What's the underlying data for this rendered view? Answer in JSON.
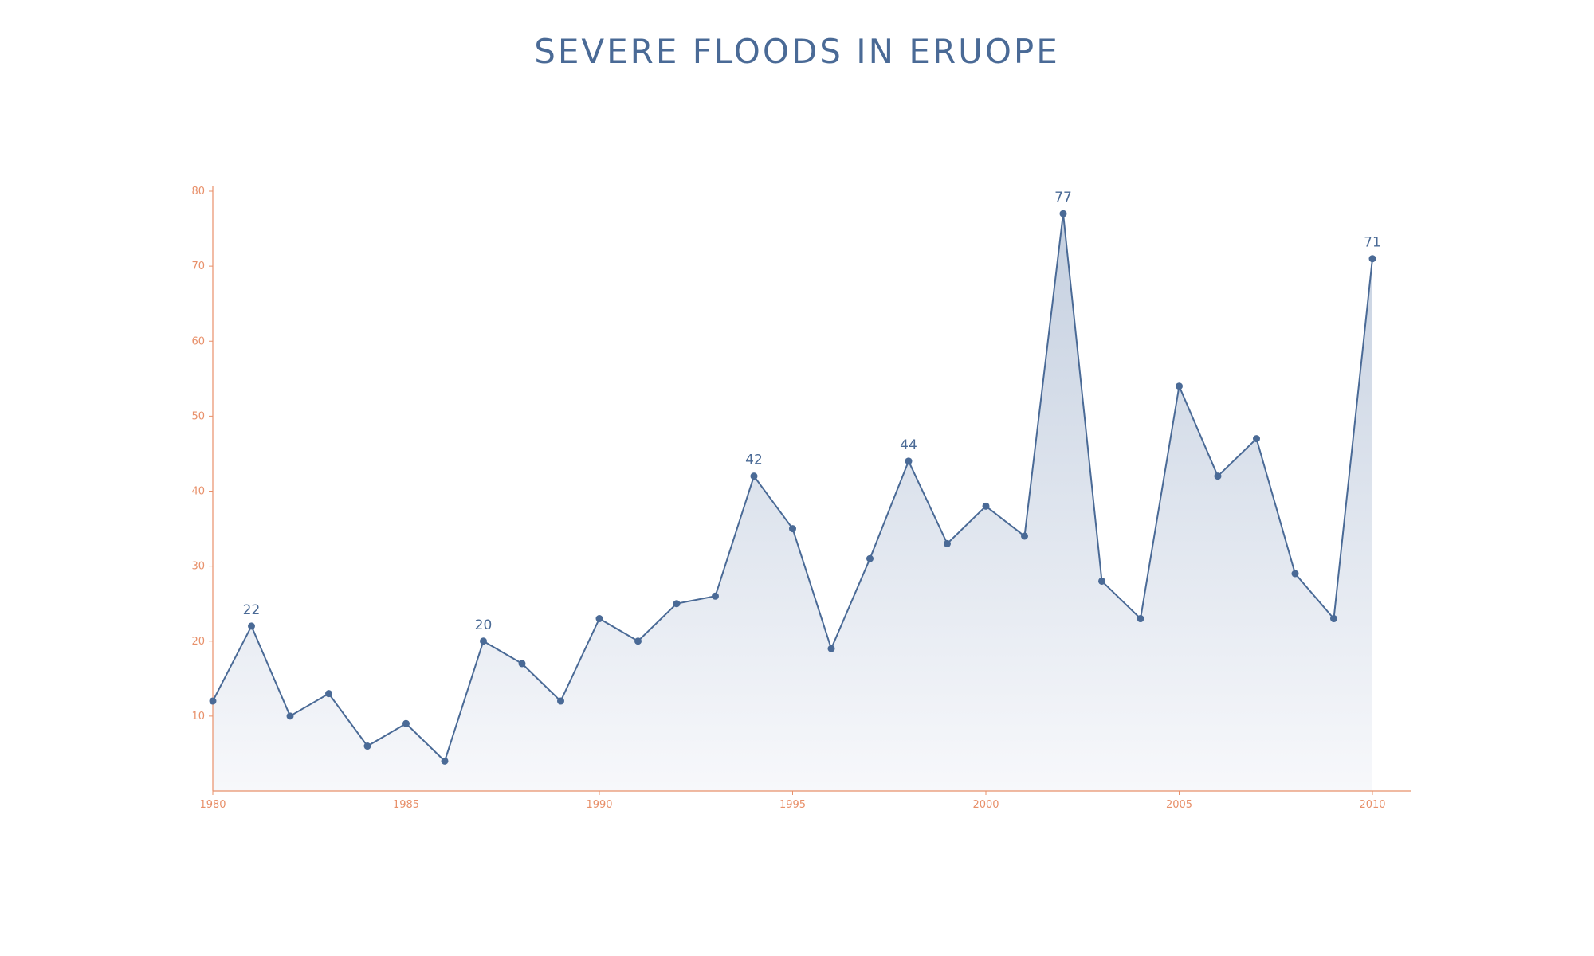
{
  "chart_data": {
    "type": "area",
    "title": "SEVERE FLOODS IN ERUOPE",
    "xlabel": "",
    "ylabel": "",
    "x": [
      1980,
      1981,
      1982,
      1983,
      1984,
      1985,
      1986,
      1987,
      1988,
      1989,
      1990,
      1991,
      1992,
      1993,
      1994,
      1995,
      1996,
      1997,
      1998,
      1999,
      2000,
      2001,
      2002,
      2003,
      2004,
      2005,
      2006,
      2007,
      2008,
      2009,
      2010
    ],
    "values": [
      12,
      22,
      10,
      13,
      6,
      9,
      4,
      20,
      17,
      12,
      23,
      20,
      25,
      26,
      42,
      35,
      19,
      31,
      44,
      33,
      38,
      34,
      77,
      28,
      23,
      54,
      42,
      47,
      29,
      23,
      71
    ],
    "xlim": [
      1980,
      2011
    ],
    "ylim": [
      0,
      80
    ],
    "x_ticks": [
      "1980",
      "1985",
      "1990",
      "1995",
      "2000",
      "2005",
      "2010"
    ],
    "y_ticks": [
      "10",
      "20",
      "30",
      "40",
      "50",
      "60",
      "70",
      "80"
    ],
    "annotations": [
      {
        "x": 1981,
        "text": "22"
      },
      {
        "x": 1987,
        "text": "20"
      },
      {
        "x": 1994,
        "text": "42"
      },
      {
        "x": 1998,
        "text": "44"
      },
      {
        "x": 2002,
        "text": "77"
      },
      {
        "x": 2010,
        "text": "71"
      }
    ],
    "grid": false,
    "colors": {
      "line": "#4a6a96",
      "area_top": "#c5d0e0",
      "area_bottom": "#f7f8fb",
      "axis": "#e8906a",
      "title": "#4a6a96"
    }
  }
}
